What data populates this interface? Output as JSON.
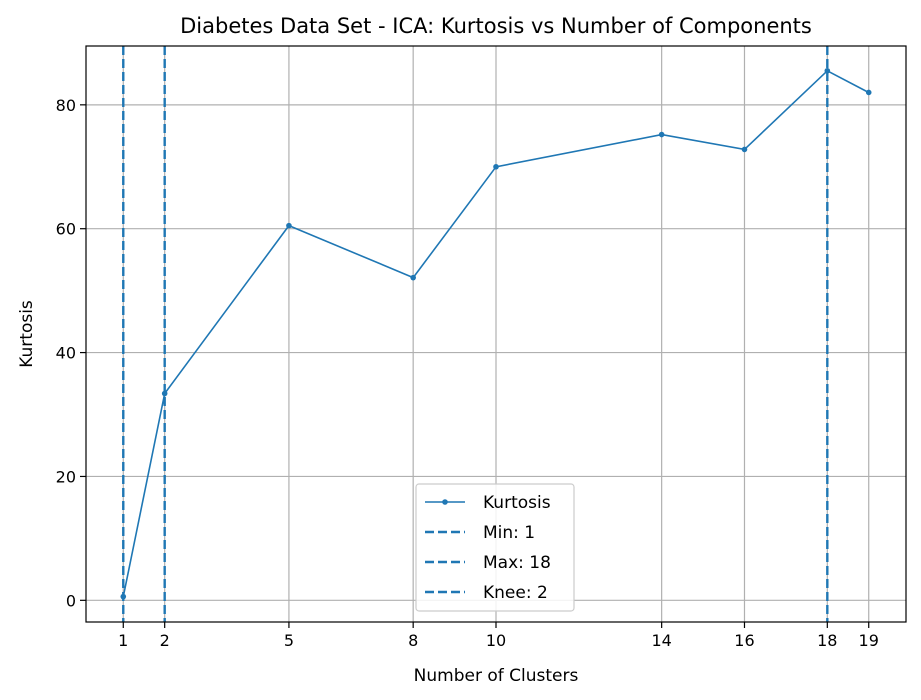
{
  "chart_data": {
    "type": "line",
    "title": "Diabetes Data Set - ICA: Kurtosis vs Number of Components",
    "xlabel": "Number of Clusters",
    "ylabel": "Kurtosis",
    "x": [
      1,
      2,
      5,
      8,
      10,
      14,
      16,
      18,
      19
    ],
    "xticks": [
      "1",
      "2",
      "5",
      "8",
      "10",
      "14",
      "16",
      "18",
      "19"
    ],
    "yticks": [
      "0",
      "20",
      "40",
      "60",
      "80"
    ],
    "xlim": [
      0.1,
      19.9
    ],
    "ylim": [
      -3.5,
      89.5
    ],
    "grid": true,
    "legend_position": "bottom-center",
    "series": [
      {
        "name": "Kurtosis",
        "values": [
          0.6,
          33.4,
          60.5,
          52.1,
          70.0,
          75.2,
          72.8,
          85.5,
          82.0
        ],
        "color": "#1f77b4"
      }
    ],
    "vlines": [
      {
        "label": "Min: 1",
        "x": 1,
        "color": "#1f77b4"
      },
      {
        "label": "Max: 18",
        "x": 18,
        "color": "#1f77b4"
      },
      {
        "label": "Knee: 2",
        "x": 2,
        "color": "#1f77b4"
      }
    ]
  }
}
